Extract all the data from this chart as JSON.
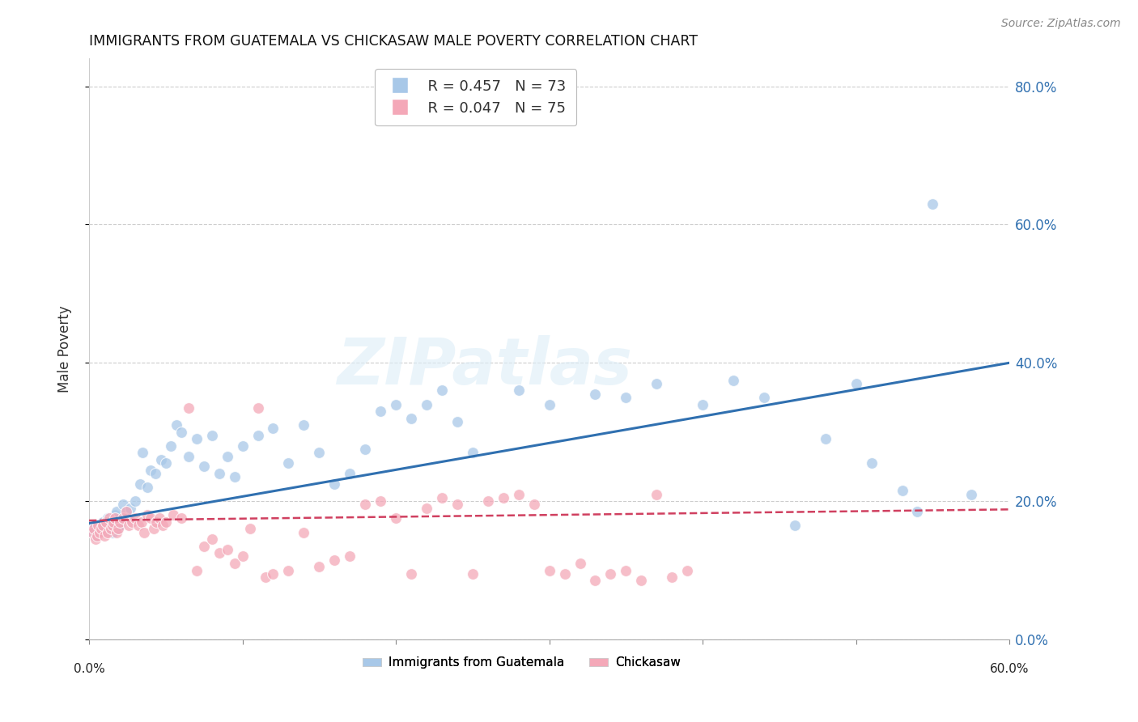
{
  "title": "IMMIGRANTS FROM GUATEMALA VS CHICKASAW MALE POVERTY CORRELATION CHART",
  "source": "Source: ZipAtlas.com",
  "ylabel": "Male Poverty",
  "ytick_labels": [
    "0.0%",
    "20.0%",
    "40.0%",
    "60.0%",
    "80.0%"
  ],
  "ytick_values": [
    0.0,
    0.2,
    0.4,
    0.6,
    0.8
  ],
  "xlim": [
    0.0,
    0.6
  ],
  "ylim": [
    0.0,
    0.84
  ],
  "watermark_text": "ZIPatlas",
  "legend_blue_label": "Immigrants from Guatemala",
  "legend_pink_label": "Chickasaw",
  "legend_blue_r": "R = 0.457",
  "legend_blue_n": "N = 73",
  "legend_pink_r": "R = 0.047",
  "legend_pink_n": "N = 75",
  "blue_color": "#a8c8e8",
  "pink_color": "#f4a8b8",
  "blue_line_color": "#3070b0",
  "pink_line_color": "#d04060",
  "grid_color": "#cccccc",
  "bg_color": "#ffffff",
  "blue_line_x0": 0.0,
  "blue_line_y0": 0.168,
  "blue_line_x1": 0.6,
  "blue_line_y1": 0.4,
  "pink_line_x0": 0.0,
  "pink_line_y0": 0.172,
  "pink_line_x1": 0.6,
  "pink_line_y1": 0.188,
  "blue_pts_x": [
    0.002,
    0.003,
    0.004,
    0.005,
    0.006,
    0.007,
    0.008,
    0.009,
    0.01,
    0.011,
    0.012,
    0.013,
    0.014,
    0.015,
    0.016,
    0.017,
    0.018,
    0.019,
    0.02,
    0.022,
    0.024,
    0.025,
    0.027,
    0.03,
    0.033,
    0.035,
    0.038,
    0.04,
    0.043,
    0.047,
    0.05,
    0.053,
    0.057,
    0.06,
    0.065,
    0.07,
    0.075,
    0.08,
    0.085,
    0.09,
    0.095,
    0.1,
    0.11,
    0.12,
    0.13,
    0.14,
    0.15,
    0.16,
    0.17,
    0.18,
    0.19,
    0.2,
    0.21,
    0.22,
    0.23,
    0.24,
    0.25,
    0.28,
    0.3,
    0.33,
    0.35,
    0.37,
    0.4,
    0.42,
    0.44,
    0.46,
    0.48,
    0.5,
    0.51,
    0.53,
    0.54,
    0.55,
    0.575
  ],
  "blue_pts_y": [
    0.155,
    0.16,
    0.15,
    0.155,
    0.165,
    0.16,
    0.155,
    0.17,
    0.165,
    0.158,
    0.175,
    0.16,
    0.165,
    0.155,
    0.175,
    0.18,
    0.185,
    0.16,
    0.165,
    0.195,
    0.185,
    0.175,
    0.19,
    0.2,
    0.225,
    0.27,
    0.22,
    0.245,
    0.24,
    0.26,
    0.255,
    0.28,
    0.31,
    0.3,
    0.265,
    0.29,
    0.25,
    0.295,
    0.24,
    0.265,
    0.235,
    0.28,
    0.295,
    0.305,
    0.255,
    0.31,
    0.27,
    0.225,
    0.24,
    0.275,
    0.33,
    0.34,
    0.32,
    0.34,
    0.36,
    0.315,
    0.27,
    0.36,
    0.34,
    0.355,
    0.35,
    0.37,
    0.34,
    0.375,
    0.35,
    0.165,
    0.29,
    0.37,
    0.255,
    0.215,
    0.185,
    0.63,
    0.21
  ],
  "pink_pts_x": [
    0.002,
    0.003,
    0.004,
    0.005,
    0.006,
    0.007,
    0.008,
    0.009,
    0.01,
    0.011,
    0.012,
    0.013,
    0.014,
    0.015,
    0.016,
    0.017,
    0.018,
    0.019,
    0.02,
    0.022,
    0.024,
    0.026,
    0.028,
    0.03,
    0.032,
    0.034,
    0.036,
    0.038,
    0.04,
    0.042,
    0.044,
    0.046,
    0.048,
    0.05,
    0.055,
    0.06,
    0.065,
    0.07,
    0.075,
    0.08,
    0.085,
    0.09,
    0.095,
    0.1,
    0.105,
    0.11,
    0.115,
    0.12,
    0.13,
    0.14,
    0.15,
    0.16,
    0.17,
    0.18,
    0.19,
    0.2,
    0.21,
    0.22,
    0.23,
    0.24,
    0.25,
    0.26,
    0.27,
    0.28,
    0.29,
    0.3,
    0.31,
    0.32,
    0.33,
    0.34,
    0.35,
    0.36,
    0.37,
    0.38,
    0.39
  ],
  "pink_pts_y": [
    0.155,
    0.16,
    0.145,
    0.15,
    0.165,
    0.155,
    0.16,
    0.165,
    0.15,
    0.17,
    0.155,
    0.175,
    0.16,
    0.165,
    0.17,
    0.175,
    0.155,
    0.16,
    0.17,
    0.175,
    0.185,
    0.165,
    0.17,
    0.175,
    0.165,
    0.17,
    0.155,
    0.18,
    0.175,
    0.16,
    0.17,
    0.175,
    0.165,
    0.17,
    0.18,
    0.175,
    0.335,
    0.1,
    0.135,
    0.145,
    0.125,
    0.13,
    0.11,
    0.12,
    0.16,
    0.335,
    0.09,
    0.095,
    0.1,
    0.155,
    0.105,
    0.115,
    0.12,
    0.195,
    0.2,
    0.175,
    0.095,
    0.19,
    0.205,
    0.195,
    0.095,
    0.2,
    0.205,
    0.21,
    0.195,
    0.1,
    0.095,
    0.11,
    0.085,
    0.095,
    0.1,
    0.085,
    0.21,
    0.09,
    0.1
  ]
}
